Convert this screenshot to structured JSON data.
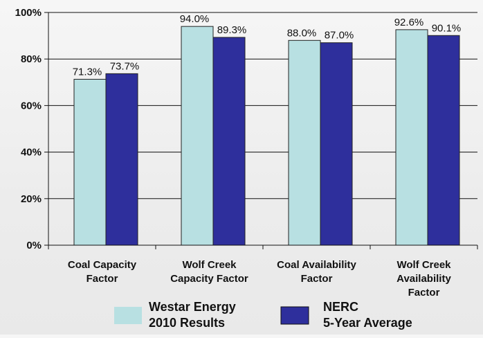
{
  "chart_data": {
    "type": "bar",
    "categories": [
      [
        "Coal Capacity",
        "Factor"
      ],
      [
        "Wolf Creek",
        "Capacity Factor"
      ],
      [
        "Coal Availability",
        "Factor"
      ],
      [
        "Wolf Creek",
        "Availability",
        "Factor"
      ]
    ],
    "series": [
      {
        "name": [
          "Westar Energy",
          "2010 Results"
        ],
        "values": [
          71.3,
          94.0,
          88.0,
          92.6
        ],
        "labels": [
          "71.3%",
          "94.0%",
          "88.0%",
          "92.6%"
        ],
        "color": "#b8e0e2"
      },
      {
        "name": [
          "NERC",
          "5-Year Average"
        ],
        "values": [
          73.7,
          89.3,
          87.0,
          90.1
        ],
        "labels": [
          "73.7%",
          "89.3%",
          "87.0%",
          "90.1%"
        ],
        "color": "#2e2f9c"
      }
    ],
    "yticks": [
      {
        "value": 0,
        "label": "0%"
      },
      {
        "value": 20,
        "label": "20%"
      },
      {
        "value": 40,
        "label": "40%"
      },
      {
        "value": 60,
        "label": "60%"
      },
      {
        "value": 80,
        "label": "80%"
      },
      {
        "value": 100,
        "label": "100%"
      }
    ],
    "ylim": [
      0,
      100
    ],
    "grid": true,
    "legend_position": "bottom"
  }
}
